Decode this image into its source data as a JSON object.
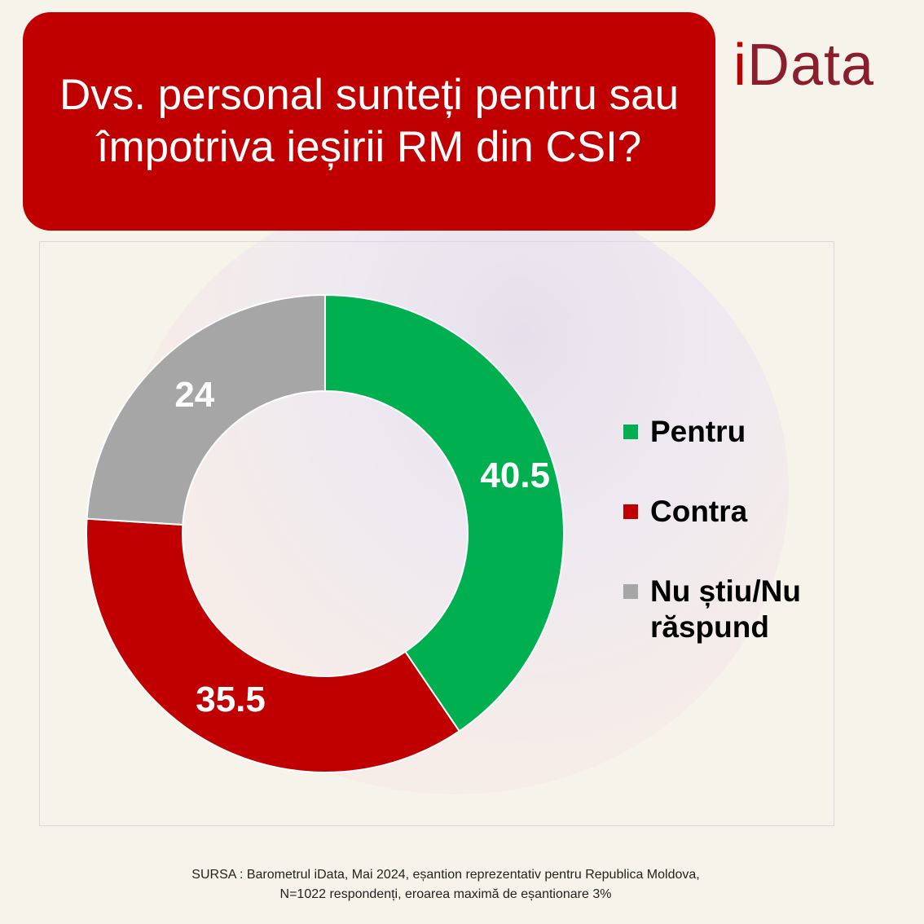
{
  "title": "Dvs. personal sunteți pentru sau împotriva ieșirii RM din CSI?",
  "logo": {
    "dot_letter": "i",
    "rest": "Data"
  },
  "chart_data": {
    "type": "pie",
    "donut": true,
    "categories": [
      "Pentru",
      "Contra",
      "Nu știu/Nu răspund"
    ],
    "values": [
      40.5,
      35.5,
      24
    ],
    "labels": [
      "40.5",
      "35.5",
      "24"
    ],
    "colors": [
      "#00b050",
      "#c00000",
      "#a6a6a6"
    ],
    "legend_position": "right"
  },
  "legend": [
    {
      "label": "Pentru",
      "color": "#00b050"
    },
    {
      "label": "Contra",
      "color": "#c00000"
    },
    {
      "label": "Nu știu/Nu răspund",
      "color": "#a6a6a6"
    }
  ],
  "source": {
    "line1": "SURSA : Barometrul iData, Mai 2024, eșantion reprezentativ pentru Republica Moldova,",
    "line2": "N=1022 respondenți, eroarea maximă de eșantionare 3%"
  }
}
